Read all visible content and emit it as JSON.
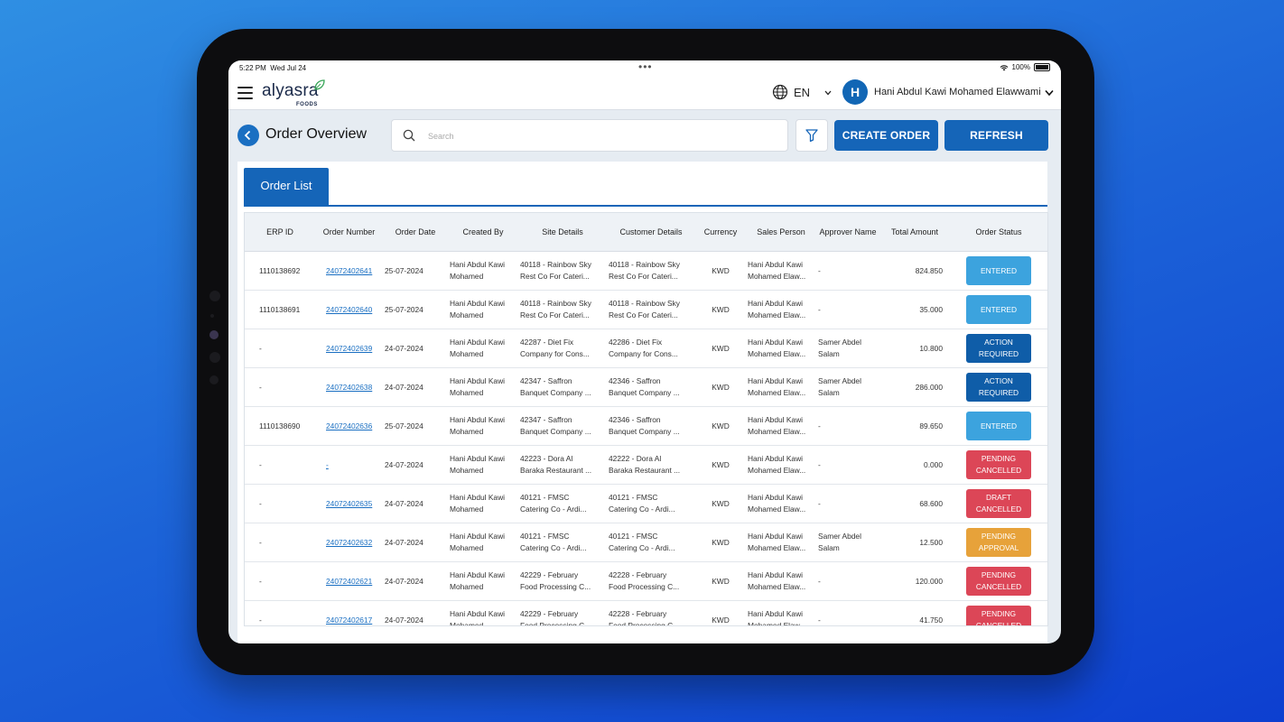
{
  "statusbar": {
    "time": "5:22 PM",
    "date": "Wed Jul 24",
    "battery": "100%",
    "dots": "•••"
  },
  "appbar": {
    "logo_text": "alyasra",
    "logo_sub": "FOODS",
    "language": "EN",
    "avatar_initial": "H",
    "user_name": "Hani Abdul Kawi Mohamed Elawwami"
  },
  "toolbar": {
    "title": "Order Overview",
    "search_placeholder": "Search",
    "create_label": "CREATE ORDER",
    "refresh_label": "REFRESH"
  },
  "tabs": [
    {
      "label": "Order List"
    }
  ],
  "table": {
    "columns": [
      "ERP ID",
      "Order Number",
      "Order Date",
      "Created By",
      "Site Details",
      "Customer Details",
      "Currency",
      "Sales Person",
      "Approver Name",
      "Total Amount",
      "Order Status"
    ],
    "rows": [
      {
        "erp": "1110138692",
        "order": "24072402641",
        "date": "25-07-2024",
        "created": [
          "Hani Abdul Kawi",
          "Mohamed"
        ],
        "site": [
          "40118 - Rainbow Sky",
          "Rest Co For Cateri..."
        ],
        "customer": [
          "40118 - Rainbow Sky",
          "Rest Co For Cateri..."
        ],
        "currency": "KWD",
        "sales": [
          "Hani Abdul Kawi",
          "Mohamed Elaw..."
        ],
        "approver": [
          "-",
          ""
        ],
        "total": "824.850",
        "status": "ENTERED",
        "status_type": "entered"
      },
      {
        "erp": "1110138691",
        "order": "24072402640",
        "date": "25-07-2024",
        "created": [
          "Hani Abdul Kawi",
          "Mohamed"
        ],
        "site": [
          "40118 - Rainbow Sky",
          "Rest Co For Cateri..."
        ],
        "customer": [
          "40118 - Rainbow Sky",
          "Rest Co For Cateri..."
        ],
        "currency": "KWD",
        "sales": [
          "Hani Abdul Kawi",
          "Mohamed Elaw..."
        ],
        "approver": [
          "-",
          ""
        ],
        "total": "35.000",
        "status": "ENTERED",
        "status_type": "entered"
      },
      {
        "erp": "-",
        "order": "24072402639",
        "date": "24-07-2024",
        "created": [
          "Hani Abdul Kawi",
          "Mohamed"
        ],
        "site": [
          "42287 - Diet Fix",
          "Company for Cons..."
        ],
        "customer": [
          "42286 - Diet Fix",
          "Company for Cons..."
        ],
        "currency": "KWD",
        "sales": [
          "Hani Abdul Kawi",
          "Mohamed Elaw..."
        ],
        "approver": [
          "Samer Abdel",
          "Salam"
        ],
        "total": "10.800",
        "status": "ACTION\nREQUIRED",
        "status_type": "action"
      },
      {
        "erp": "-",
        "order": "24072402638",
        "date": "24-07-2024",
        "created": [
          "Hani Abdul Kawi",
          "Mohamed"
        ],
        "site": [
          "42347 - Saffron",
          "Banquet Company ..."
        ],
        "customer": [
          "42346 - Saffron",
          "Banquet Company ..."
        ],
        "currency": "KWD",
        "sales": [
          "Hani Abdul Kawi",
          "Mohamed Elaw..."
        ],
        "approver": [
          "Samer Abdel",
          "Salam"
        ],
        "total": "286.000",
        "status": "ACTION\nREQUIRED",
        "status_type": "action"
      },
      {
        "erp": "1110138690",
        "order": "24072402636",
        "date": "25-07-2024",
        "created": [
          "Hani Abdul Kawi",
          "Mohamed"
        ],
        "site": [
          "42347 - Saffron",
          "Banquet Company ..."
        ],
        "customer": [
          "42346 - Saffron",
          "Banquet Company ..."
        ],
        "currency": "KWD",
        "sales": [
          "Hani Abdul Kawi",
          "Mohamed Elaw..."
        ],
        "approver": [
          "-",
          ""
        ],
        "total": "89.650",
        "status": "ENTERED",
        "status_type": "entered"
      },
      {
        "erp": "-",
        "order": "-",
        "date": "24-07-2024",
        "created": [
          "Hani Abdul Kawi",
          "Mohamed"
        ],
        "site": [
          "42223 - Dora Al",
          "Baraka Restaurant ..."
        ],
        "customer": [
          "42222 - Dora Al",
          "Baraka Restaurant ..."
        ],
        "currency": "KWD",
        "sales": [
          "Hani Abdul Kawi",
          "Mohamed Elaw..."
        ],
        "approver": [
          "-",
          ""
        ],
        "total": "0.000",
        "status": "PENDING\nCANCELLED",
        "status_type": "cancel"
      },
      {
        "erp": "-",
        "order": "24072402635",
        "date": "24-07-2024",
        "created": [
          "Hani Abdul Kawi",
          "Mohamed"
        ],
        "site": [
          "40121 - FMSC",
          "Catering Co - Ardi..."
        ],
        "customer": [
          "40121 - FMSC",
          "Catering Co - Ardi..."
        ],
        "currency": "KWD",
        "sales": [
          "Hani Abdul Kawi",
          "Mohamed Elaw..."
        ],
        "approver": [
          "-",
          ""
        ],
        "total": "68.600",
        "status": "DRAFT\nCANCELLED",
        "status_type": "cancel"
      },
      {
        "erp": "-",
        "order": "24072402632",
        "date": "24-07-2024",
        "created": [
          "Hani Abdul Kawi",
          "Mohamed"
        ],
        "site": [
          "40121 - FMSC",
          "Catering Co - Ardi..."
        ],
        "customer": [
          "40121 - FMSC",
          "Catering Co - Ardi..."
        ],
        "currency": "KWD",
        "sales": [
          "Hani Abdul Kawi",
          "Mohamed Elaw..."
        ],
        "approver": [
          "Samer Abdel",
          "Salam"
        ],
        "total": "12.500",
        "status": "PENDING\nAPPROVAL",
        "status_type": "pending"
      },
      {
        "erp": "-",
        "order": "24072402621",
        "date": "24-07-2024",
        "created": [
          "Hani Abdul Kawi",
          "Mohamed"
        ],
        "site": [
          "42229 - February",
          "Food Processing C..."
        ],
        "customer": [
          "42228 - February",
          "Food Processing C..."
        ],
        "currency": "KWD",
        "sales": [
          "Hani Abdul Kawi",
          "Mohamed Elaw..."
        ],
        "approver": [
          "-",
          ""
        ],
        "total": "120.000",
        "status": "PENDING\nCANCELLED",
        "status_type": "cancel"
      },
      {
        "erp": "-",
        "order": "24072402617",
        "date": "24-07-2024",
        "created": [
          "Hani Abdul Kawi",
          "Mohamed"
        ],
        "site": [
          "42229 - February",
          "Food Processing C..."
        ],
        "customer": [
          "42228 - February",
          "Food Processing C..."
        ],
        "currency": "KWD",
        "sales": [
          "Hani Abdul Kawi",
          "Mohamed Elaw..."
        ],
        "approver": [
          "-",
          ""
        ],
        "total": "41.750",
        "status": "PENDING\nCANCELLED",
        "status_type": "cancel"
      }
    ]
  },
  "colors": {
    "primary": "#1565b8",
    "entered": "#3ca3de",
    "action": "#0f5da8",
    "cancelled": "#dc4657",
    "pending": "#e7a23a"
  },
  "icons": [
    "menu-icon",
    "leaf-icon",
    "globe-icon",
    "chevron-down-icon",
    "back-arrow-icon",
    "search-icon",
    "filter-icon",
    "wifi-icon",
    "battery-icon"
  ]
}
